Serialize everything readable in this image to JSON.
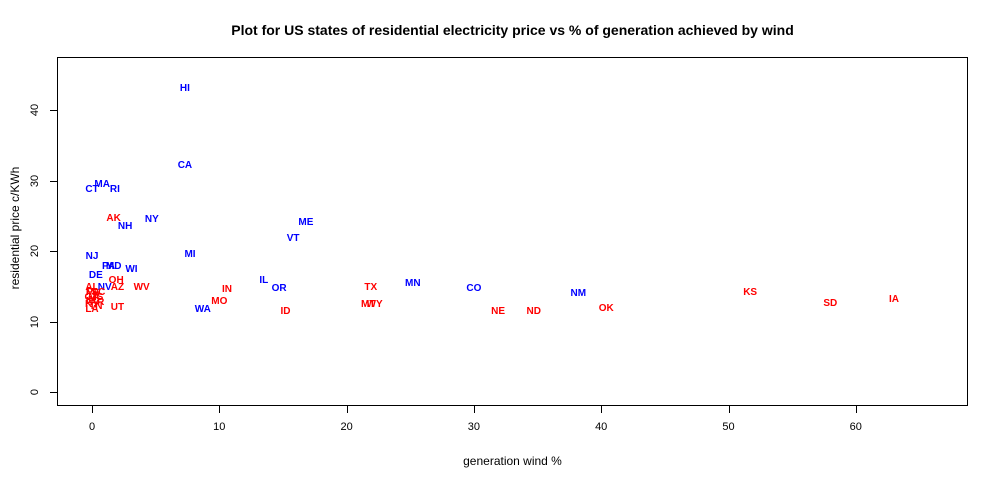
{
  "chart_data": {
    "type": "scatter",
    "title": "Plot for US states of residential electricity price vs % of generation achieved by wind",
    "xlabel": "generation wind %",
    "ylabel": "residential price c/KWh",
    "x_ticks": [
      0,
      10,
      20,
      30,
      40,
      50,
      60
    ],
    "y_ticks": [
      0,
      10,
      20,
      30,
      40
    ],
    "xlim": [
      -3,
      69
    ],
    "ylim": [
      -2,
      47.5
    ],
    "grid": false,
    "legend": "none",
    "marker": "state-abbreviation-text",
    "colors": {
      "blue": "#0000ff",
      "red": "#ff0000"
    },
    "points": [
      {
        "state": "HI",
        "wind": 7.3,
        "price": 43.0,
        "color": "blue"
      },
      {
        "state": "CA",
        "wind": 7.3,
        "price": 32.0,
        "color": "blue"
      },
      {
        "state": "MA",
        "wind": 0.8,
        "price": 29.4,
        "color": "blue"
      },
      {
        "state": "CT",
        "wind": 0.0,
        "price": 28.7,
        "color": "blue"
      },
      {
        "state": "RI",
        "wind": 1.8,
        "price": 28.7,
        "color": "blue"
      },
      {
        "state": "AK",
        "wind": 1.7,
        "price": 24.6,
        "color": "red"
      },
      {
        "state": "NY",
        "wind": 4.7,
        "price": 24.4,
        "color": "blue"
      },
      {
        "state": "ME",
        "wind": 16.8,
        "price": 24.0,
        "color": "blue"
      },
      {
        "state": "NH",
        "wind": 2.6,
        "price": 23.4,
        "color": "blue"
      },
      {
        "state": "VT",
        "wind": 15.8,
        "price": 21.7,
        "color": "blue"
      },
      {
        "state": "MI",
        "wind": 7.7,
        "price": 19.4,
        "color": "blue"
      },
      {
        "state": "NJ",
        "wind": 0.0,
        "price": 19.1,
        "color": "blue"
      },
      {
        "state": "PA",
        "wind": 1.3,
        "price": 17.8,
        "color": "blue"
      },
      {
        "state": "MD",
        "wind": 1.7,
        "price": 17.8,
        "color": "blue"
      },
      {
        "state": "WI",
        "wind": 3.1,
        "price": 17.3,
        "color": "blue"
      },
      {
        "state": "DE",
        "wind": 0.3,
        "price": 16.4,
        "color": "blue"
      },
      {
        "state": "IL",
        "wind": 13.5,
        "price": 15.8,
        "color": "blue"
      },
      {
        "state": "OH",
        "wind": 1.9,
        "price": 15.7,
        "color": "red"
      },
      {
        "state": "MN",
        "wind": 25.2,
        "price": 15.3,
        "color": "blue"
      },
      {
        "state": "AL",
        "wind": 0.0,
        "price": 14.8,
        "color": "red"
      },
      {
        "state": "WV",
        "wind": 3.9,
        "price": 14.8,
        "color": "red"
      },
      {
        "state": "TX",
        "wind": 21.9,
        "price": 14.8,
        "color": "red"
      },
      {
        "state": "NV",
        "wind": 1.0,
        "price": 14.7,
        "color": "blue"
      },
      {
        "state": "AZ",
        "wind": 2.0,
        "price": 14.7,
        "color": "red"
      },
      {
        "state": "CO",
        "wind": 30.0,
        "price": 14.6,
        "color": "blue"
      },
      {
        "state": "OR",
        "wind": 14.7,
        "price": 14.6,
        "color": "blue"
      },
      {
        "state": "IN",
        "wind": 10.6,
        "price": 14.4,
        "color": "red"
      },
      {
        "state": "FL",
        "wind": 0.0,
        "price": 14.1,
        "color": "red"
      },
      {
        "state": "VA",
        "wind": 0.1,
        "price": 14.0,
        "color": "red"
      },
      {
        "state": "SC",
        "wind": 0.5,
        "price": 14.0,
        "color": "red"
      },
      {
        "state": "KS",
        "wind": 51.7,
        "price": 14.0,
        "color": "red"
      },
      {
        "state": "NM",
        "wind": 38.2,
        "price": 13.9,
        "color": "blue"
      },
      {
        "state": "MS",
        "wind": 0.3,
        "price": 13.4,
        "color": "red"
      },
      {
        "state": "GA",
        "wind": 0.0,
        "price": 13.3,
        "color": "red"
      },
      {
        "state": "IA",
        "wind": 63.0,
        "price": 13.0,
        "color": "red"
      },
      {
        "state": "MO",
        "wind": 10.0,
        "price": 12.8,
        "color": "red"
      },
      {
        "state": "NC",
        "wind": 0.1,
        "price": 12.7,
        "color": "red"
      },
      {
        "state": "AR",
        "wind": 0.4,
        "price": 12.6,
        "color": "red"
      },
      {
        "state": "SD",
        "wind": 58.0,
        "price": 12.5,
        "color": "red"
      },
      {
        "state": "KY",
        "wind": 0.0,
        "price": 12.4,
        "color": "red"
      },
      {
        "state": "MT",
        "wind": 21.7,
        "price": 12.3,
        "color": "red"
      },
      {
        "state": "WY",
        "wind": 22.2,
        "price": 12.3,
        "color": "red"
      },
      {
        "state": "TN",
        "wind": 0.3,
        "price": 12.0,
        "color": "red"
      },
      {
        "state": "UT",
        "wind": 2.0,
        "price": 11.9,
        "color": "red"
      },
      {
        "state": "OK",
        "wind": 40.4,
        "price": 11.8,
        "color": "red"
      },
      {
        "state": "LA",
        "wind": 0.0,
        "price": 11.6,
        "color": "red"
      },
      {
        "state": "WA",
        "wind": 8.7,
        "price": 11.6,
        "color": "blue"
      },
      {
        "state": "ID",
        "wind": 15.2,
        "price": 11.4,
        "color": "red"
      },
      {
        "state": "NE",
        "wind": 31.9,
        "price": 11.3,
        "color": "red"
      },
      {
        "state": "ND",
        "wind": 34.7,
        "price": 11.3,
        "color": "red"
      }
    ]
  }
}
